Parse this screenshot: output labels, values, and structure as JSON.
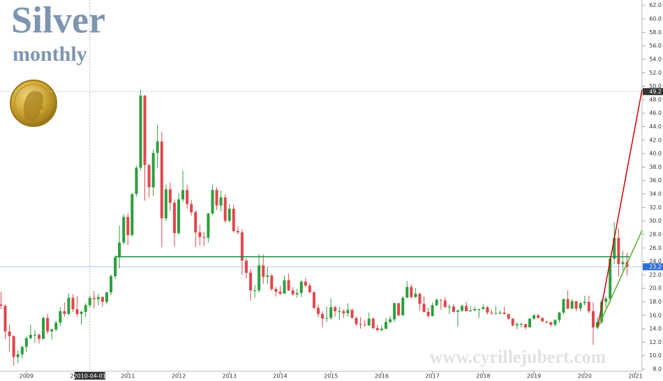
{
  "chart_data": {
    "type": "candlestick",
    "title": "Silver",
    "subtitle": "monthly",
    "watermark": "www.cyrillejubert.com",
    "x": [
      2008.5,
      2008.583,
      2008.667,
      2008.75,
      2008.833,
      2008.917,
      2009,
      2009.083,
      2009.167,
      2009.25,
      2009.333,
      2009.417,
      2009.5,
      2009.583,
      2009.667,
      2009.75,
      2009.833,
      2009.917,
      2010,
      2010.083,
      2010.167,
      2010.25,
      2010.333,
      2010.417,
      2010.5,
      2010.583,
      2010.667,
      2010.75,
      2010.833,
      2010.917,
      2011,
      2011.083,
      2011.167,
      2011.25,
      2011.333,
      2011.417,
      2011.5,
      2011.583,
      2011.667,
      2011.75,
      2011.833,
      2011.917,
      2012,
      2012.083,
      2012.167,
      2012.25,
      2012.333,
      2012.417,
      2012.5,
      2012.583,
      2012.667,
      2012.75,
      2012.833,
      2012.917,
      2013,
      2013.083,
      2013.167,
      2013.25,
      2013.333,
      2013.417,
      2013.5,
      2013.583,
      2013.667,
      2013.75,
      2013.833,
      2013.917,
      2014,
      2014.083,
      2014.167,
      2014.25,
      2014.333,
      2014.417,
      2014.5,
      2014.583,
      2014.667,
      2014.75,
      2014.833,
      2014.917,
      2015,
      2015.083,
      2015.167,
      2015.25,
      2015.333,
      2015.417,
      2015.5,
      2015.583,
      2015.667,
      2015.75,
      2015.833,
      2015.917,
      2016,
      2016.083,
      2016.167,
      2016.25,
      2016.333,
      2016.417,
      2016.5,
      2016.583,
      2016.667,
      2016.75,
      2016.833,
      2016.917,
      2017,
      2017.083,
      2017.167,
      2017.25,
      2017.333,
      2017.417,
      2017.5,
      2017.583,
      2017.667,
      2017.75,
      2017.833,
      2017.917,
      2018,
      2018.083,
      2018.167,
      2018.25,
      2018.333,
      2018.417,
      2018.5,
      2018.583,
      2018.667,
      2018.75,
      2018.833,
      2018.917,
      2019,
      2019.083,
      2019.167,
      2019.25,
      2019.333,
      2019.417,
      2019.5,
      2019.583,
      2019.667,
      2019.75,
      2019.833,
      2019.917,
      2020,
      2020.083,
      2020.167,
      2020.25,
      2020.333,
      2020.417,
      2020.5,
      2020.583,
      2020.667,
      2020.75,
      2020.833
    ],
    "open": [
      17.6,
      17.4,
      13.6,
      12.9,
      9.8,
      10.2,
      11.3,
      12.6,
      13.1,
      13.1,
      12.5,
      15.6,
      13.6,
      13.9,
      14.9,
      16.6,
      16.2,
      18.6,
      16.9,
      16.2,
      16.5,
      17.5,
      18.6,
      18.4,
      18.7,
      18.0,
      19.4,
      21.8,
      24.6,
      26.8,
      30.6,
      27.9,
      34.0,
      37.9,
      48.6,
      38.3,
      35.0,
      40.1,
      41.8,
      30.4,
      34.7,
      32.7,
      28.2,
      33.2,
      34.6,
      32.5,
      31.3,
      28.3,
      27.6,
      27.5,
      31.1,
      34.6,
      32.3,
      33.5,
      30.0,
      31.8,
      28.5,
      28.3,
      24.1,
      22.3,
      19.7,
      19.7,
      23.4,
      21.7,
      21.9,
      19.9,
      19.5,
      19.2,
      21.2,
      19.7,
      19.1,
      19.3,
      21.0,
      20.4,
      19.4,
      17.1,
      16.2,
      15.5,
      15.6,
      17.2,
      16.6,
      16.6,
      16.3,
      16.8,
      15.6,
      14.7,
      14.6,
      14.5,
      15.5,
      14.1,
      13.8,
      14.0,
      15.0,
      15.4,
      17.8,
      16.0,
      18.6,
      20.2,
      18.7,
      19.2,
      17.7,
      16.5,
      15.9,
      17.5,
      18.3,
      18.2,
      17.2,
      17.3,
      16.5,
      16.7,
      17.4,
      16.6,
      16.7,
      16.9,
      16.9,
      17.2,
      16.4,
      16.3,
      16.3,
      16.4,
      16.2,
      15.5,
      14.5,
      14.7,
      14.7,
      14.2,
      15.5,
      16.0,
      15.6,
      15.1,
      15.0,
      14.6,
      15.3,
      16.4,
      18.4,
      17.0,
      18.1,
      17.0,
      17.8,
      18.0,
      16.6,
      14.2,
      15.0,
      18.0,
      18.5,
      24.4,
      27.5,
      23.6,
      23.9
    ],
    "high": [
      19.5,
      17.6,
      14.6,
      13.0,
      10.8,
      11.5,
      12.9,
      14.6,
      13.8,
      13.3,
      15.8,
      16.2,
      14.0,
      15.2,
      17.2,
      17.9,
      19.2,
      19.1,
      18.8,
      16.7,
      17.8,
      18.9,
      19.6,
      19.2,
      18.8,
      19.5,
      22.1,
      24.9,
      29.3,
      31.0,
      31.2,
      34.1,
      38.2,
      49.5,
      48.7,
      38.5,
      40.6,
      44.3,
      43.2,
      35.4,
      35.7,
      33.2,
      34.1,
      37.5,
      35.4,
      33.1,
      31.6,
      29.4,
      28.4,
      31.2,
      35.4,
      35.0,
      34.5,
      34.0,
      32.5,
      32.4,
      29.2,
      28.8,
      24.5,
      22.9,
      20.5,
      25.1,
      25.0,
      23.1,
      22.1,
      20.2,
      20.4,
      21.9,
      22.2,
      20.2,
      19.9,
      21.2,
      21.6,
      20.7,
      19.6,
      17.6,
      16.6,
      17.3,
      18.5,
      17.4,
      17.2,
      16.9,
      17.8,
      17.0,
      15.8,
      15.7,
      15.3,
      16.4,
      15.7,
      14.6,
      14.5,
      15.6,
      15.9,
      17.9,
      17.8,
      18.9,
      21.1,
      20.6,
      20.0,
      19.3,
      18.8,
      17.1,
      17.9,
      18.5,
      18.4,
      18.7,
      17.6,
      17.7,
      16.9,
      17.6,
      18.0,
      17.4,
      17.3,
      17.0,
      17.7,
      17.4,
      16.8,
      17.4,
      16.7,
      17.3,
      16.2,
      15.6,
      14.9,
      14.9,
      14.7,
      15.6,
      16.2,
      16.2,
      15.7,
      15.2,
      15.0,
      15.4,
      16.5,
      18.5,
      19.7,
      18.4,
      18.1,
      18.0,
      18.9,
      18.9,
      17.9,
      15.7,
      18.4,
      18.8,
      24.6,
      29.8,
      28.9,
      25.6,
      25.3
    ],
    "low": [
      16.9,
      12.5,
      10.6,
      8.5,
      8.9,
      9.6,
      10.6,
      12.4,
      11.9,
      11.8,
      12.4,
      13.2,
      12.4,
      13.6,
      14.4,
      15.8,
      16.0,
      16.5,
      15.8,
      14.6,
      15.8,
      17.2,
      17.0,
      17.5,
      17.3,
      17.6,
      19.0,
      21.4,
      23.0,
      26.5,
      26.4,
      27.7,
      33.6,
      37.5,
      33.0,
      33.5,
      33.7,
      37.8,
      26.1,
      30.0,
      31.5,
      26.2,
      27.9,
      32.8,
      31.8,
      30.8,
      26.1,
      26.4,
      26.3,
      26.8,
      30.9,
      31.6,
      31.4,
      29.7,
      29.8,
      28.3,
      28.0,
      22.0,
      21.5,
      18.2,
      18.6,
      19.4,
      20.7,
      20.6,
      19.6,
      18.8,
      19.0,
      19.2,
      19.6,
      18.9,
      18.6,
      18.7,
      20.2,
      19.3,
      16.9,
      15.7,
      14.2,
      15.0,
      15.3,
      15.8,
      15.3,
      15.6,
      15.8,
      15.6,
      14.4,
      14.0,
      14.3,
      14.4,
      13.9,
      13.6,
      13.6,
      13.9,
      14.8,
      15.0,
      15.9,
      15.9,
      18.6,
      18.5,
      18.6,
      16.7,
      16.4,
      15.6,
      15.8,
      17.3,
      16.8,
      17.2,
      16.2,
      16.4,
      14.3,
      16.5,
      16.6,
      16.5,
      16.6,
      15.6,
      16.9,
      16.1,
      16.1,
      16.1,
      16.1,
      16.1,
      15.3,
      14.3,
      13.9,
      14.2,
      13.9,
      14.2,
      15.3,
      15.5,
      15.0,
      14.7,
      14.3,
      14.3,
      14.9,
      16.1,
      16.9,
      16.9,
      16.6,
      16.6,
      17.4,
      16.3,
      11.6,
      14.0,
      14.7,
      17.1,
      17.8,
      23.6,
      21.7,
      22.6,
      21.9
    ],
    "close": [
      17.4,
      13.6,
      12.9,
      9.8,
      10.2,
      11.3,
      12.6,
      13.1,
      13.1,
      12.5,
      15.6,
      13.6,
      13.9,
      14.9,
      16.6,
      16.2,
      18.6,
      16.9,
      16.2,
      16.5,
      17.5,
      18.6,
      18.4,
      18.7,
      18.0,
      19.4,
      21.8,
      24.6,
      26.8,
      30.6,
      27.9,
      34.0,
      37.9,
      48.6,
      38.3,
      35.0,
      40.1,
      41.8,
      30.4,
      34.7,
      32.7,
      28.2,
      33.2,
      34.6,
      32.5,
      31.3,
      28.3,
      27.6,
      27.5,
      31.1,
      34.6,
      32.3,
      33.5,
      30.0,
      31.8,
      28.5,
      28.3,
      24.1,
      22.3,
      19.7,
      19.7,
      23.4,
      21.7,
      21.9,
      19.9,
      19.5,
      19.2,
      21.2,
      19.7,
      19.1,
      19.3,
      21.0,
      20.4,
      19.4,
      17.1,
      16.2,
      15.5,
      15.6,
      17.2,
      16.6,
      16.6,
      16.3,
      16.8,
      15.6,
      14.7,
      14.6,
      14.5,
      15.5,
      14.1,
      13.8,
      14.0,
      15.0,
      15.4,
      17.8,
      16.0,
      18.6,
      20.2,
      18.7,
      19.2,
      17.7,
      16.5,
      15.9,
      17.5,
      18.3,
      18.2,
      17.2,
      17.3,
      16.5,
      16.7,
      17.4,
      16.6,
      16.7,
      16.9,
      16.9,
      17.2,
      16.4,
      16.3,
      16.3,
      16.4,
      16.2,
      15.5,
      14.5,
      14.7,
      14.7,
      14.2,
      15.5,
      16.0,
      15.6,
      15.1,
      15.0,
      14.6,
      15.3,
      16.4,
      18.4,
      17.0,
      18.1,
      17.0,
      17.8,
      18.0,
      16.6,
      14.2,
      15.0,
      18.0,
      18.5,
      24.4,
      27.5,
      23.6,
      23.9,
      23.2
    ],
    "up_color": "#2e9e3e",
    "down_color": "#e0474c",
    "xlim": [
      2008.48,
      2021.13
    ],
    "xticks": [
      2009,
      2010,
      2011,
      2012,
      2013,
      2014,
      2015,
      2016,
      2017,
      2018,
      2019,
      2020,
      2021
    ],
    "ylim": [
      7.9,
      62.8
    ],
    "yticks": [
      {
        "value": 8,
        "label": "8.0"
      },
      {
        "value": 10,
        "label": "10.0"
      },
      {
        "value": 12,
        "label": "12.0"
      },
      {
        "value": 14,
        "label": "14.0"
      },
      {
        "value": 16,
        "label": "16.0"
      },
      {
        "value": 18,
        "label": "18.0"
      },
      {
        "value": 20,
        "label": "20.0"
      },
      {
        "value": 22,
        "label": "22.0"
      },
      {
        "value": 24,
        "label": "24.0"
      },
      {
        "value": 26,
        "label": "26.0"
      },
      {
        "value": 28,
        "label": "28.0"
      },
      {
        "value": 30,
        "label": "30.0"
      },
      {
        "value": 32,
        "label": "32.0"
      },
      {
        "value": 34,
        "label": "34.0"
      },
      {
        "value": 36,
        "label": "36.0"
      },
      {
        "value": 38,
        "label": "38.0"
      },
      {
        "value": 40,
        "label": "40.0"
      },
      {
        "value": 42,
        "label": "42.0"
      },
      {
        "value": 44,
        "label": "44.0"
      },
      {
        "value": 46,
        "label": "46.0"
      },
      {
        "value": 48,
        "label": "48.0"
      },
      {
        "value": 50,
        "label": "50.0"
      },
      {
        "value": 52,
        "label": "52.0"
      },
      {
        "value": 54,
        "label": "54.0"
      },
      {
        "value": 56,
        "label": "56.0"
      },
      {
        "value": 58,
        "label": "58.0"
      },
      {
        "value": 60,
        "label": "60.0"
      },
      {
        "value": 62,
        "label": "62.0"
      }
    ],
    "grid": false,
    "crosshair": {
      "x": 2010.25,
      "x_label": "2010-04-01",
      "y": 49.2
    },
    "last_price": 23.2,
    "levels": [
      {
        "value": 24.7,
        "color": "#1a8a4a"
      }
    ],
    "trendlines": [
      {
        "x": [
          2020.25,
          2021.13
        ],
        "y": [
          14.0,
          49.5
        ],
        "color": "#d40000"
      },
      {
        "x": [
          2020.25,
          2021.13
        ],
        "y": [
          14.0,
          28.6
        ],
        "color": "#5aaa2a"
      }
    ]
  }
}
